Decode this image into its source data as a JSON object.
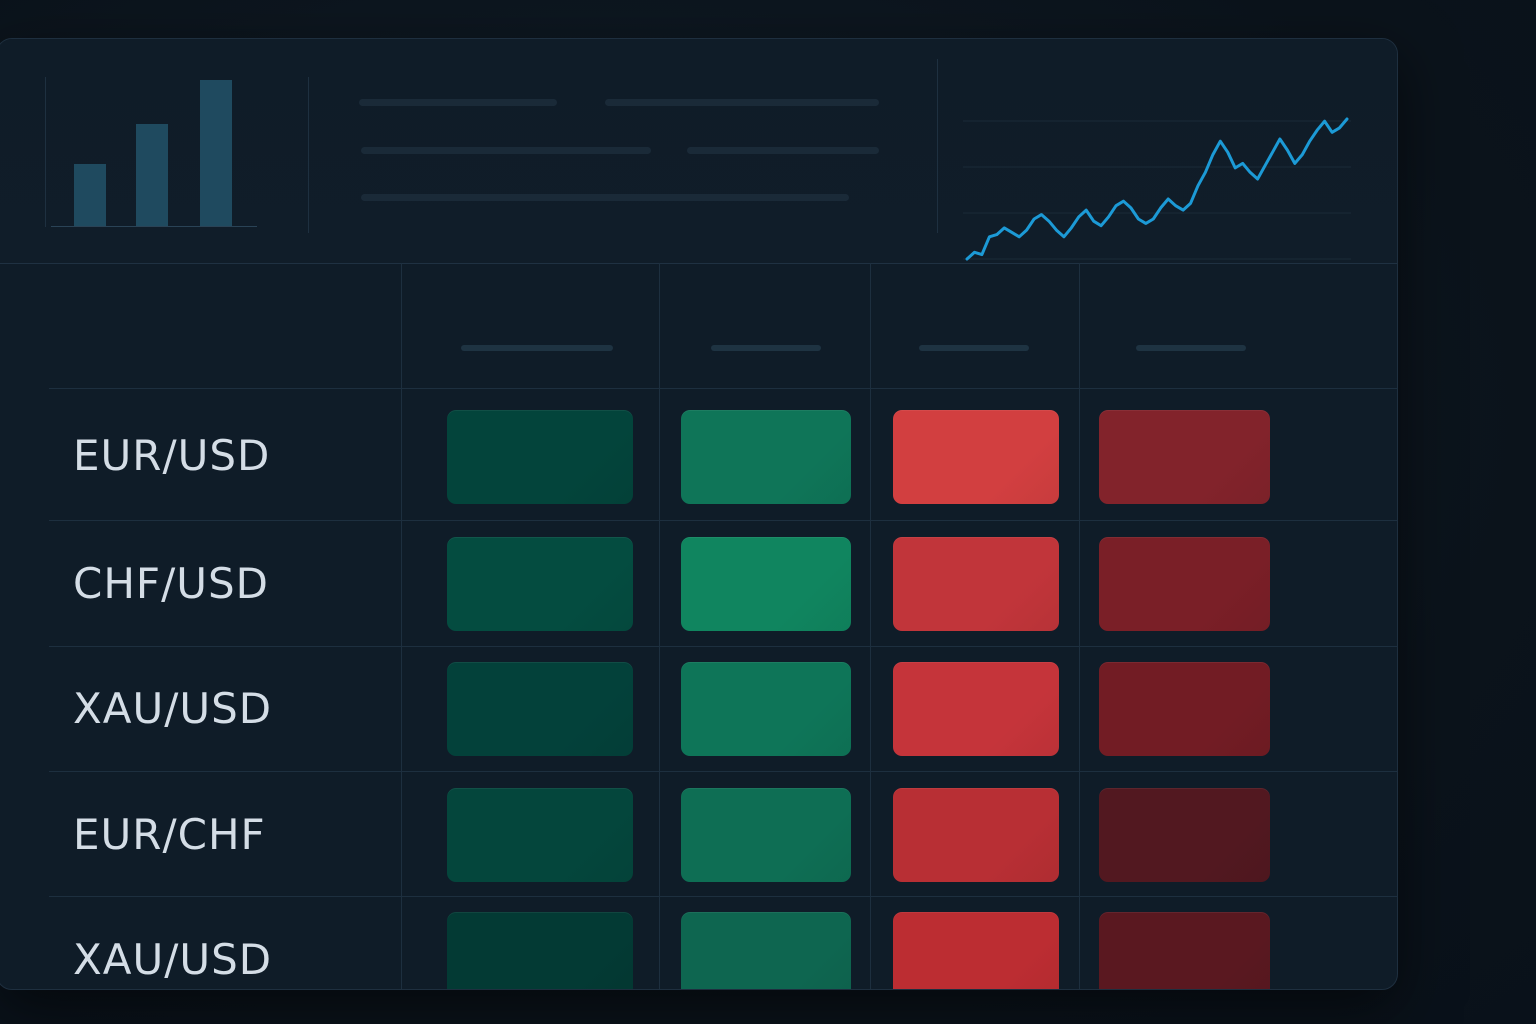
{
  "rows": [
    {
      "pair": "EUR/USD",
      "cells": [
        "#03443b",
        "#0f7558",
        "#d23f40",
        "#82232b"
      ]
    },
    {
      "pair": "CHF/USD",
      "cells": [
        "#044c40",
        "#10855f",
        "#c1353a",
        "#7a1f27"
      ]
    },
    {
      "pair": "XAU/USD",
      "cells": [
        "#03413a",
        "#0e7558",
        "#c5343a",
        "#721c24"
      ]
    },
    {
      "pair": "EUR/CHF",
      "cells": [
        "#04463c",
        "#0e6e54",
        "#b82f34",
        "#521820"
      ]
    },
    {
      "pair": "XAU/USD",
      "cells": [
        "#033a34",
        "#0e6650",
        "#bc2d32",
        "#5a1820"
      ]
    }
  ],
  "header": {
    "bar_chart": {
      "values": [
        62,
        102,
        146
      ],
      "color": "#1f4a5f"
    },
    "sparkline": {
      "color": "#1c9ad6",
      "values": [
        2,
        5,
        4,
        12,
        13,
        16,
        14,
        12,
        15,
        20,
        22,
        19,
        15,
        12,
        16,
        21,
        24,
        19,
        17,
        21,
        26,
        28,
        25,
        20,
        18,
        20,
        25,
        29,
        26,
        24,
        27,
        35,
        41,
        49,
        55,
        50,
        43,
        45,
        41,
        38,
        44,
        50,
        56,
        51,
        45,
        49,
        55,
        60,
        64,
        59,
        61,
        65
      ]
    }
  },
  "colors": {
    "green_dark": "#03443b",
    "green": "#0f7558",
    "red": "#d23f40",
    "red_dark": "#82232b",
    "accent": "#1c9ad6"
  }
}
